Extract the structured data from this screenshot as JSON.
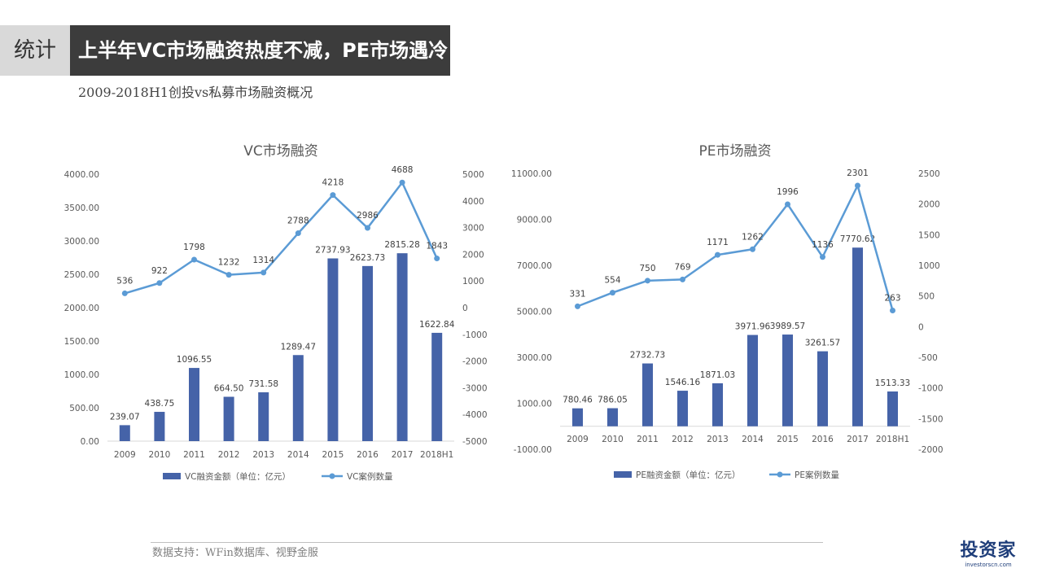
{
  "header": {
    "tag": "统计",
    "title": "上半年VC市场融资热度不减，PE市场遇冷"
  },
  "subtitle": "2009-2018H1创投vs私募市场融资概况",
  "footer": {
    "source": "数据支持：WFin数据库、视野金服"
  },
  "logo": {
    "main": "投资家",
    "sub": "investorscn.com"
  },
  "colors": {
    "bar": "#4563a8",
    "line": "#5b9bd5",
    "axis": "#595959",
    "grid_axis": "#d9d9d9"
  },
  "chart_data": [
    {
      "type": "bar",
      "title": "VC市场融资",
      "categories": [
        "2009",
        "2010",
        "2011",
        "2012",
        "2013",
        "2014",
        "2015",
        "2016",
        "2017",
        "2018H1"
      ],
      "series": [
        {
          "name": "VC融资金额（单位：亿元）",
          "type": "bar",
          "axis": "left",
          "values": [
            239.07,
            438.75,
            1096.55,
            664.5,
            731.58,
            1289.47,
            2737.93,
            2623.73,
            2815.28,
            1622.84
          ],
          "labels": [
            "239.07",
            "438.75",
            "1096.55",
            "664.50",
            "731.58",
            "1289.47",
            "2737.93",
            "2623.73",
            "2815.28",
            "1622.84"
          ]
        },
        {
          "name": "VC案例数量",
          "type": "line",
          "axis": "right",
          "values": [
            536,
            922,
            1798,
            1232,
            1314,
            2788,
            4218,
            2986,
            4688,
            1843
          ],
          "labels": [
            "536",
            "922",
            "1798",
            "1232",
            "1314",
            "2788",
            "4218",
            "2986",
            "4688",
            "1843"
          ]
        }
      ],
      "ylim_left": [
        0,
        4000
      ],
      "yticks_left": [
        "4000.00",
        "3500.00",
        "3000.00",
        "2500.00",
        "2000.00",
        "1500.00",
        "1000.00",
        "500.00",
        "0.00"
      ],
      "ylim_right": [
        -5000,
        5000
      ],
      "yticks_right": [
        "5000",
        "4000",
        "3000",
        "2000",
        "1000",
        "0",
        "-1000",
        "-2000",
        "-3000",
        "-4000",
        "-5000"
      ],
      "legend": "bottom",
      "grid": false
    },
    {
      "type": "bar",
      "title": "PE市场融资",
      "categories": [
        "2009",
        "2010",
        "2011",
        "2012",
        "2013",
        "2014",
        "2015",
        "2016",
        "2017",
        "2018H1"
      ],
      "series": [
        {
          "name": "PE融资金额（单位：亿元）",
          "type": "bar",
          "axis": "left",
          "values": [
            780.46,
            786.05,
            2732.73,
            1546.16,
            1871.03,
            3971.96,
            3989.57,
            3261.57,
            7770.62,
            1513.33
          ],
          "labels": [
            "780.46",
            "786.05",
            "2732.73",
            "1546.16",
            "1871.03",
            "3971.96",
            "3989.57",
            "3261.57",
            "7770.62",
            "1513.33"
          ]
        },
        {
          "name": "PE案例数量",
          "type": "line",
          "axis": "right",
          "values": [
            331,
            554,
            750,
            769,
            1171,
            1262,
            1996,
            1136,
            2301,
            263
          ],
          "labels": [
            "331",
            "554",
            "750",
            "769",
            "1171",
            "1262",
            "1996",
            "1136",
            "2301",
            "263"
          ]
        }
      ],
      "ylim_left": [
        -1000,
        11000
      ],
      "yticks_left": [
        "11000.00",
        "9000.00",
        "7000.00",
        "5000.00",
        "3000.00",
        "1000.00",
        "-1000.00"
      ],
      "ylim_right": [
        -2000,
        2500
      ],
      "yticks_right": [
        "2500",
        "2000",
        "1500",
        "1000",
        "500",
        "0",
        "-500",
        "-1000",
        "-1500",
        "-2000"
      ],
      "legend": "bottom",
      "grid": false
    }
  ]
}
